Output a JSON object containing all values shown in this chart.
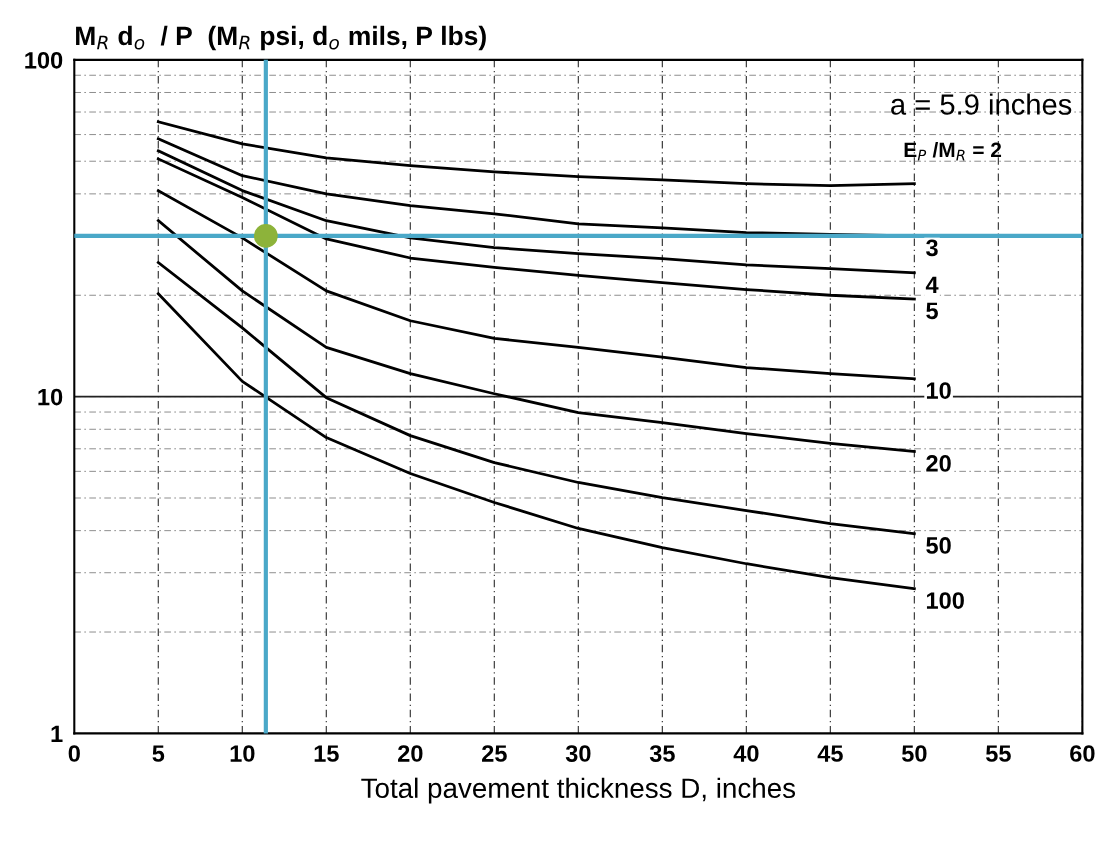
{
  "chart_data": {
    "type": "line",
    "ylabel": "M$_{R}$ d$_{o}$  / P  (M$_{R}$ psi, d$_{o}$ mils, P lbs)",
    "xlabel": "Total pavement thickness D, inches",
    "x": [
      5,
      10,
      15,
      20,
      25,
      30,
      35,
      40,
      45,
      50
    ],
    "series": [
      {
        "name": "E$_{P}$ /M$_{R}$ = 2",
        "color": "#000000",
        "values": [
          65.5,
          56.3,
          51.2,
          48.5,
          46.5,
          45.0,
          44.0,
          42.9,
          42.3,
          42.9
        ]
      },
      {
        "name": "3",
        "color": "#000000",
        "values": [
          58.3,
          45.3,
          40.0,
          36.9,
          34.9,
          32.6,
          31.7,
          30.7,
          30.3,
          30.0
        ]
      },
      {
        "name": "4",
        "color": "#000000",
        "values": [
          53.7,
          40.9,
          33.3,
          29.6,
          27.7,
          26.6,
          25.7,
          24.6,
          24.0,
          23.3
        ]
      },
      {
        "name": "5",
        "color": "#000000",
        "values": [
          50.8,
          39.0,
          29.4,
          25.8,
          24.2,
          22.9,
          21.8,
          20.8,
          20.0,
          19.5
        ]
      },
      {
        "name": "10",
        "color": "#000000",
        "values": [
          40.9,
          29.6,
          20.6,
          16.8,
          14.9,
          14.0,
          13.1,
          12.2,
          11.7,
          11.3
        ]
      },
      {
        "name": "20",
        "color": "#000000",
        "values": [
          33.3,
          20.6,
          14.0,
          11.7,
          10.2,
          8.97,
          8.37,
          7.77,
          7.26,
          6.87
        ]
      },
      {
        "name": "50",
        "color": "#000000",
        "values": [
          25.0,
          16.0,
          9.93,
          7.66,
          6.37,
          5.56,
          5.01,
          4.59,
          4.2,
          3.92
        ]
      },
      {
        "name": "100",
        "color": "#000000",
        "values": [
          20.2,
          11.1,
          7.56,
          5.91,
          4.85,
          4.06,
          3.56,
          3.19,
          2.9,
          2.69
        ]
      },
      {
        "type": "scatter",
        "x": [
          11.4
        ],
        "color": "#8db33a",
        "values": [
          30
        ],
        "marker": "circle"
      }
    ],
    "ref_lines": [
      {
        "axis": "x",
        "value": 11.4,
        "color": "#4aa8c8"
      },
      {
        "axis": "y",
        "value": 30,
        "color": "#4aa8c8"
      },
      {
        "axis": "y",
        "value": 10,
        "color": "#222222"
      }
    ],
    "annotations": [
      "a = 5.9 inches"
    ],
    "log": "y",
    "xlim": [
      0,
      60
    ],
    "ylim": [
      1,
      100
    ],
    "xticks": [
      0,
      5,
      10,
      15,
      20,
      25,
      30,
      35,
      40,
      45,
      50,
      55,
      60
    ],
    "yticks": [
      1,
      10,
      100
    ],
    "grid": true,
    "marker": "none",
    "line_style": "solid"
  }
}
